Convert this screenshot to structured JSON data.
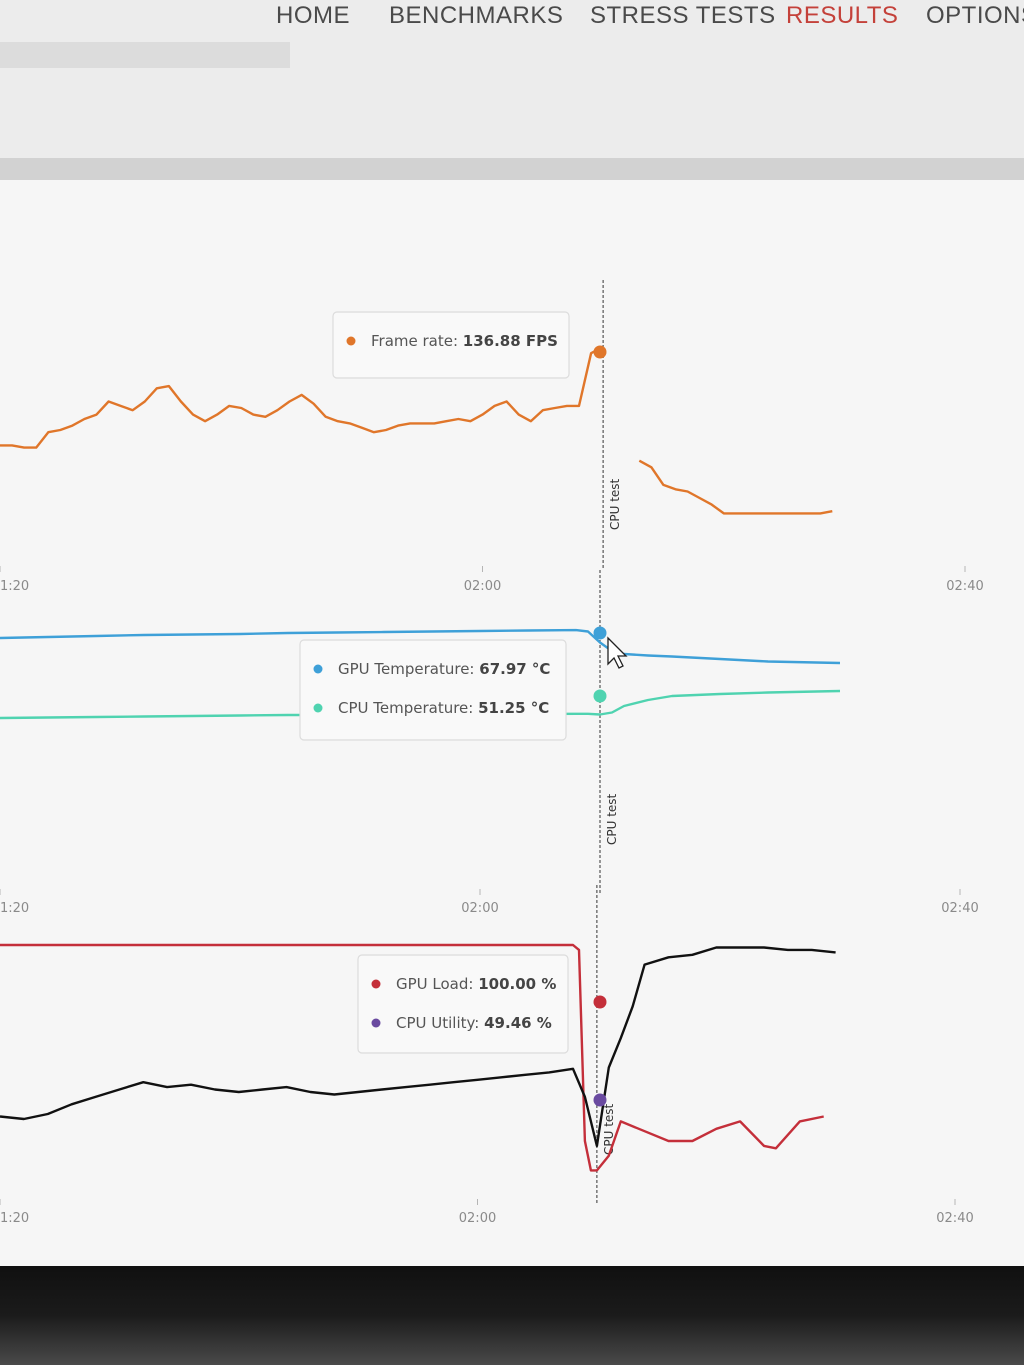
{
  "nav": {
    "items": [
      {
        "label": "HOME",
        "active": false
      },
      {
        "label": "BENCHMARKS",
        "active": false
      },
      {
        "label": "STRESS TESTS",
        "active": false
      },
      {
        "label": "RESULTS",
        "active": true
      },
      {
        "label": "OPTIONS",
        "active": false
      }
    ]
  },
  "colors": {
    "frame_rate": "#e0762a",
    "gpu_temperature": "#3ea0d8",
    "cpu_temperature": "#4fd3b0",
    "gpu_load": "#c42f3a",
    "cpu_utility": "#111111",
    "cpu_utility_marker": "#6a4aa0"
  },
  "chart_data": [
    {
      "type": "line",
      "x_ticks": [
        "1:20",
        "02:00",
        "02:40"
      ],
      "marker": {
        "label": "CPU test",
        "x": "02:10"
      },
      "series": [
        {
          "name": "Frame rate",
          "unit": "FPS",
          "x": [
            "1:20",
            "1:21",
            "1:22",
            "1:23",
            "1:24",
            "1:25",
            "1:26",
            "1:27",
            "1:28",
            "1:29",
            "1:30",
            "1:31",
            "1:32",
            "1:33",
            "1:34",
            "1:35",
            "1:36",
            "1:37",
            "1:38",
            "1:39",
            "1:40",
            "1:41",
            "1:42",
            "1:43",
            "1:44",
            "1:45",
            "1:46",
            "1:47",
            "1:48",
            "1:49",
            "1:50",
            "1:51",
            "1:52",
            "1:53",
            "1:54",
            "1:55",
            "1:56",
            "1:57",
            "1:58",
            "1:59",
            "2:00",
            "2:01",
            "2:02",
            "2:03",
            "2:04",
            "2:05",
            "2:06",
            "2:07",
            "2:08",
            "2:09",
            "2:10",
            "2:11",
            "2:12",
            "2:13",
            "2:14",
            "2:15",
            "2:16",
            "2:17",
            "2:18",
            "2:19",
            "2:20",
            "2:21",
            "2:22",
            "2:23",
            "2:24",
            "2:25",
            "2:26",
            "2:27",
            "2:28",
            "2:29"
          ],
          "values": [
            92,
            92,
            91,
            91,
            98,
            99,
            101,
            104,
            106,
            112,
            110,
            108,
            112,
            118,
            119,
            112,
            106,
            103,
            106,
            110,
            109,
            106,
            105,
            108,
            112,
            115,
            111,
            105,
            103,
            102,
            100,
            98,
            99,
            101,
            102,
            102,
            102,
            103,
            104,
            103,
            106,
            110,
            112,
            106,
            103,
            108,
            109,
            110,
            110,
            134,
            136.88,
            null,
            null,
            85,
            82,
            74,
            72,
            71,
            68,
            65,
            61,
            61,
            61,
            61,
            61,
            61,
            61,
            61,
            61,
            62
          ],
          "tooltip": "136.88 FPS"
        }
      ]
    },
    {
      "type": "line",
      "x_ticks": [
        "1:20",
        "02:00",
        "02:40"
      ],
      "marker": {
        "label": "CPU test",
        "x": "02:10"
      },
      "series": [
        {
          "name": "GPU Temperature",
          "unit": "°C",
          "x": [
            "1:20",
            "1:24",
            "1:28",
            "1:32",
            "1:36",
            "1:40",
            "1:44",
            "1:48",
            "1:52",
            "1:56",
            "2:00",
            "2:04",
            "2:08",
            "2:09",
            "2:10",
            "2:11",
            "2:12",
            "2:14",
            "2:16",
            "2:20",
            "2:24",
            "2:28",
            "2:30"
          ],
          "values": [
            66.4,
            66.6,
            66.8,
            67.0,
            67.1,
            67.2,
            67.4,
            67.5,
            67.6,
            67.7,
            67.8,
            67.9,
            67.97,
            67.7,
            65.5,
            63.8,
            63.2,
            62.9,
            62.7,
            62.2,
            61.7,
            61.5,
            61.4
          ],
          "tooltip": "67.97 °C"
        },
        {
          "name": "CPU Temperature",
          "unit": "°C",
          "x": [
            "1:20",
            "1:24",
            "1:28",
            "1:32",
            "1:36",
            "1:40",
            "1:44",
            "1:48",
            "1:52",
            "1:56",
            "2:00",
            "2:04",
            "2:08",
            "2:09",
            "2:10",
            "2:11",
            "2:12",
            "2:14",
            "2:16",
            "2:20",
            "2:24",
            "2:28",
            "2:30"
          ],
          "values": [
            50.4,
            50.5,
            50.6,
            50.7,
            50.8,
            50.9,
            51.0,
            51.0,
            51.1,
            51.1,
            51.2,
            51.2,
            51.25,
            51.25,
            51.1,
            51.5,
            52.8,
            54.0,
            54.8,
            55.2,
            55.5,
            55.7,
            55.8
          ],
          "tooltip": "51.25 °C"
        }
      ]
    },
    {
      "type": "line",
      "x_ticks": [
        "1:20",
        "02:00",
        "02:40"
      ],
      "marker": {
        "label": "CPU test",
        "x": "02:10"
      },
      "series": [
        {
          "name": "GPU Load",
          "unit": "%",
          "x": [
            "1:20",
            "1:30",
            "1:40",
            "1:50",
            "2:00",
            "2:08",
            "2:08.5",
            "2:09",
            "2:09.5",
            "2:10",
            "2:11",
            "2:12",
            "2:14",
            "2:16",
            "2:18",
            "2:20",
            "2:22",
            "2:24",
            "2:25",
            "2:27",
            "2:29"
          ],
          "values": [
            100,
            100,
            100,
            100,
            100,
            100,
            98,
            20,
            8,
            8,
            14,
            28,
            24,
            20,
            20,
            25,
            28,
            18,
            17,
            28,
            30
          ],
          "tooltip": "100.00 %"
        },
        {
          "name": "CPU Utility",
          "unit": "%",
          "x": [
            "1:20",
            "1:22",
            "1:24",
            "1:26",
            "1:28",
            "1:30",
            "1:32",
            "1:34",
            "1:36",
            "1:38",
            "1:40",
            "1:42",
            "1:44",
            "1:46",
            "1:48",
            "1:50",
            "1:52",
            "1:54",
            "1:56",
            "1:58",
            "2:00",
            "2:02",
            "2:04",
            "2:06",
            "2:08",
            "2:09",
            "2:10",
            "2:11",
            "2:12",
            "2:13",
            "2:14",
            "2:16",
            "2:18",
            "2:20",
            "2:22",
            "2:24",
            "2:26",
            "2:28",
            "2:30"
          ],
          "values": [
            30,
            29,
            31,
            35,
            38,
            41,
            44,
            42,
            43,
            41,
            40,
            41,
            42,
            40,
            39,
            40,
            41,
            42,
            43,
            44,
            45,
            46,
            47,
            48,
            49.46,
            38,
            18,
            50,
            62,
            75,
            92,
            95,
            96,
            99,
            99,
            99,
            98,
            98,
            97
          ],
          "tooltip": "49.46 %"
        }
      ]
    }
  ]
}
